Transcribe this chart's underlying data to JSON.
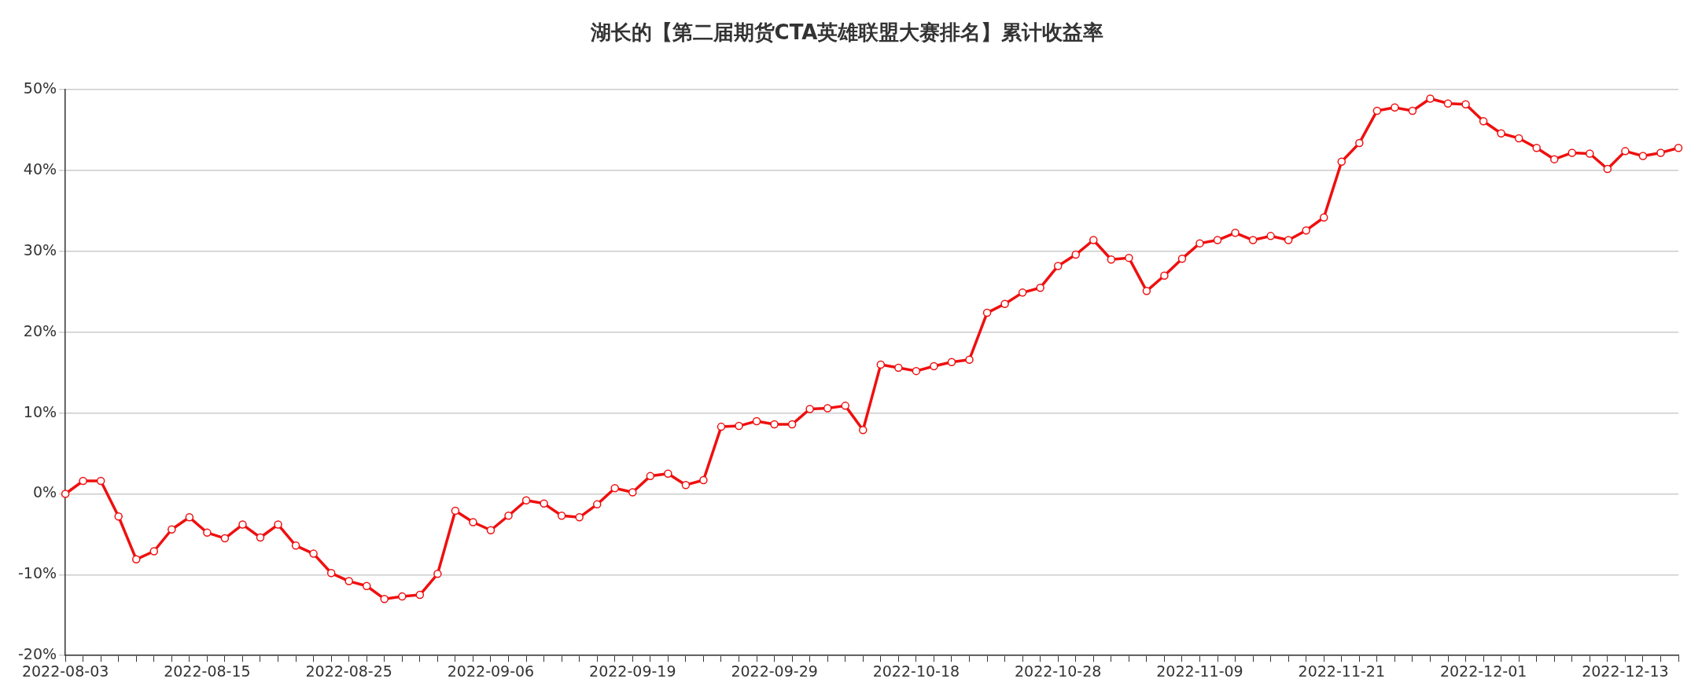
{
  "chart_data": {
    "type": "line",
    "title": "湖长的【第二届期货CTA英雄联盟大赛排名】累计收益率",
    "categories": [
      "2022-08-03",
      null,
      null,
      null,
      null,
      null,
      null,
      null,
      "2022-08-15",
      null,
      null,
      null,
      null,
      null,
      null,
      null,
      "2022-08-25",
      null,
      null,
      null,
      null,
      null,
      null,
      null,
      "2022-09-06",
      null,
      null,
      null,
      null,
      null,
      null,
      null,
      "2022-09-19",
      null,
      null,
      null,
      null,
      null,
      null,
      null,
      "2022-09-29",
      null,
      null,
      null,
      null,
      null,
      null,
      null,
      "2022-10-18",
      null,
      null,
      null,
      null,
      null,
      null,
      null,
      "2022-10-28",
      null,
      null,
      null,
      null,
      null,
      null,
      null,
      "2022-11-09",
      null,
      null,
      null,
      null,
      null,
      null,
      null,
      "2022-11-21",
      null,
      null,
      null,
      null,
      null,
      null,
      null,
      "2022-12-01",
      null,
      null,
      null,
      null,
      null,
      null,
      null,
      "2022-12-13",
      null,
      null,
      null
    ],
    "series": [
      {
        "color": "#f00f0f",
        "values": [
          0,
          1.6,
          1.6,
          -2.8,
          -8.1,
          -7.1,
          -4.4,
          -2.9,
          -4.8,
          -5.5,
          -3.8,
          -5.4,
          -3.8,
          -6.4,
          -7.4,
          -9.8,
          -10.8,
          -11.4,
          -13.0,
          -12.7,
          -12.5,
          -9.9,
          -2.1,
          -3.5,
          -4.5,
          -2.7,
          -0.8,
          -1.2,
          -2.7,
          -2.9,
          -1.3,
          0.7,
          0.2,
          2.2,
          2.5,
          1.1,
          1.7,
          8.3,
          8.4,
          9.0,
          8.6,
          8.6,
          10.5,
          10.6,
          10.9,
          7.9,
          16.0,
          15.6,
          15.2,
          15.8,
          16.3,
          16.6,
          22.4,
          23.5,
          24.9,
          25.5,
          28.2,
          29.6,
          31.4,
          29.0,
          29.2,
          25.1,
          27.0,
          29.1,
          31.0,
          31.4,
          32.3,
          31.4,
          31.9,
          31.4,
          32.6,
          34.2,
          41.1,
          43.4,
          47.4,
          47.8,
          47.4,
          48.9,
          48.3,
          48.2,
          46.1,
          44.6,
          44.0,
          42.8,
          41.4,
          42.2,
          42.1,
          40.2,
          42.4,
          41.8,
          42.2,
          42.8
        ]
      }
    ],
    "ylim": [
      -20,
      50
    ],
    "yticks": [
      {
        "value": -20,
        "label": "-20%"
      },
      {
        "value": -10,
        "label": "-10%"
      },
      {
        "value": 0,
        "label": "0%"
      },
      {
        "value": 10,
        "label": "10%"
      },
      {
        "value": 20,
        "label": "20%"
      },
      {
        "value": 30,
        "label": "30%"
      },
      {
        "value": 40,
        "label": "40%"
      },
      {
        "value": 50,
        "label": "50%"
      }
    ],
    "grid": "y",
    "marker": "circle",
    "line_style": "solid"
  }
}
